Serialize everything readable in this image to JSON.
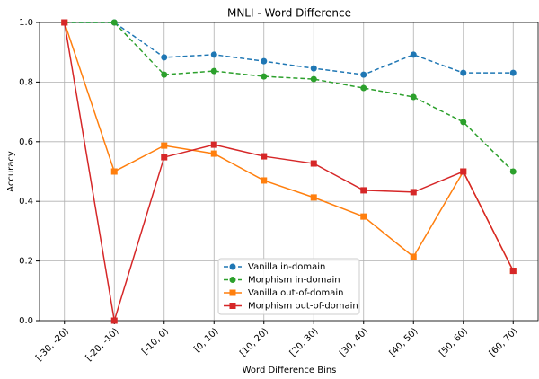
{
  "chart_data": {
    "type": "line",
    "title": "MNLI - Word Difference",
    "x_label": "Word Difference Bins",
    "y_label": "Accuracy",
    "categories": [
      "[-30, -20)",
      "[-20, -10)",
      "[-10, 0)",
      "[0, 10)",
      "[10, 20)",
      "[20, 30)",
      "[30, 40)",
      "[40, 50)",
      "[50, 60)",
      "[60, 70)"
    ],
    "series": [
      {
        "name": "Vanilla in-domain",
        "color": "#1f77b4",
        "marker": "circle",
        "linestyle": "dashed",
        "values": [
          1.0,
          1.0,
          0.883,
          0.892,
          0.87,
          0.846,
          0.825,
          0.892,
          0.831,
          0.831
        ]
      },
      {
        "name": "Morphism in-domain",
        "color": "#2ca02c",
        "marker": "circle",
        "linestyle": "dashed",
        "values": [
          1.0,
          1.0,
          0.825,
          0.837,
          0.819,
          0.81,
          0.78,
          0.75,
          0.666,
          0.5
        ]
      },
      {
        "name": "Vanilla out-of-domain",
        "color": "#ff7f0e",
        "marker": "square",
        "linestyle": "solid",
        "values": [
          1.0,
          0.5,
          0.587,
          0.56,
          0.47,
          0.413,
          0.349,
          0.214,
          0.5,
          0.167
        ]
      },
      {
        "name": "Morphism out-of-domain",
        "color": "#d62728",
        "marker": "square",
        "linestyle": "solid",
        "values": [
          1.0,
          0.0,
          0.548,
          0.59,
          0.551,
          0.527,
          0.437,
          0.431,
          0.5,
          0.167
        ]
      }
    ],
    "ylim": [
      0,
      1
    ],
    "yticks": [
      {
        "value": 0,
        "label": "0.0"
      },
      {
        "value": 0.2,
        "label": "0.2"
      },
      {
        "value": 0.4,
        "label": "0.4"
      },
      {
        "value": 0.6,
        "label": "0.6"
      },
      {
        "value": 0.8,
        "label": "0.8"
      },
      {
        "value": 1,
        "label": "1.0"
      }
    ],
    "grid": true,
    "legend": "lower center"
  }
}
